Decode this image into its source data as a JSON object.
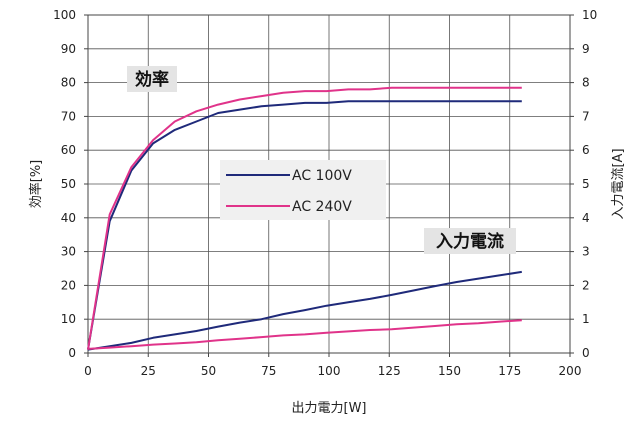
{
  "chart_data": {
    "type": "line",
    "xlabel": "出力電力[W]",
    "ylabel_left": "効率[%]",
    "ylabel_right": "入力電流[A]",
    "xlim": [
      0,
      200
    ],
    "ylim_left": [
      0,
      100
    ],
    "ylim_right": [
      0,
      10
    ],
    "x_ticks": [
      "0",
      "25",
      "50",
      "75",
      "100",
      "125",
      "150",
      "175",
      "200"
    ],
    "y_ticks_left": [
      "0",
      "10",
      "20",
      "30",
      "40",
      "50",
      "60",
      "70",
      "80",
      "90",
      "100"
    ],
    "y_ticks_right": [
      "0",
      "1",
      "2",
      "3",
      "4",
      "5",
      "6",
      "7",
      "8",
      "9",
      "10"
    ],
    "grid": true,
    "annotations": {
      "efficiency": "効率",
      "current": "入力電流"
    },
    "legend": {
      "placement": "center",
      "entries": [
        {
          "label": "AC 100V",
          "color": "#1f2a7a"
        },
        {
          "label": "AC 240V",
          "color": "#e0338a"
        }
      ]
    },
    "series": [
      {
        "name": "AC 100V",
        "quantity": "efficiency",
        "axis": "left",
        "color": "#1f2a7a",
        "x": [
          0,
          9,
          18,
          27,
          36,
          45,
          54,
          63,
          72,
          81,
          90,
          99,
          108,
          117,
          126,
          135,
          144,
          153,
          162,
          171,
          180
        ],
        "y": [
          1,
          39,
          54,
          62,
          66,
          68.5,
          71,
          72,
          73,
          73.5,
          74,
          74,
          74.5,
          74.5,
          74.5,
          74.5,
          74.5,
          74.5,
          74.5,
          74.5,
          74.5
        ]
      },
      {
        "name": "AC 240V",
        "quantity": "efficiency",
        "axis": "left",
        "color": "#e0338a",
        "x": [
          0,
          9,
          18,
          27,
          36,
          45,
          54,
          63,
          72,
          81,
          90,
          99,
          108,
          117,
          126,
          135,
          144,
          153,
          162,
          171,
          180
        ],
        "y": [
          1,
          41,
          55,
          63,
          68.5,
          71.5,
          73.5,
          75,
          76,
          77,
          77.5,
          77.5,
          78,
          78,
          78.5,
          78.5,
          78.5,
          78.5,
          78.5,
          78.5,
          78.5
        ]
      },
      {
        "name": "AC 100V",
        "quantity": "input current",
        "axis": "right",
        "color": "#1f2a7a",
        "x": [
          0,
          9,
          18,
          27,
          36,
          45,
          54,
          63,
          72,
          81,
          90,
          99,
          108,
          117,
          126,
          135,
          144,
          153,
          162,
          171,
          180
        ],
        "y": [
          0.1,
          0.2,
          0.3,
          0.45,
          0.55,
          0.65,
          0.78,
          0.9,
          1.0,
          1.15,
          1.27,
          1.4,
          1.5,
          1.6,
          1.72,
          1.85,
          1.98,
          2.1,
          2.2,
          2.3,
          2.4
        ]
      },
      {
        "name": "AC 240V",
        "quantity": "input current",
        "axis": "right",
        "color": "#e0338a",
        "x": [
          0,
          9,
          18,
          27,
          36,
          45,
          54,
          63,
          72,
          81,
          90,
          99,
          108,
          117,
          126,
          135,
          144,
          153,
          162,
          171,
          180
        ],
        "y": [
          0.12,
          0.16,
          0.2,
          0.25,
          0.28,
          0.32,
          0.38,
          0.42,
          0.47,
          0.52,
          0.55,
          0.6,
          0.64,
          0.68,
          0.7,
          0.75,
          0.8,
          0.85,
          0.88,
          0.93,
          0.97
        ]
      }
    ]
  }
}
